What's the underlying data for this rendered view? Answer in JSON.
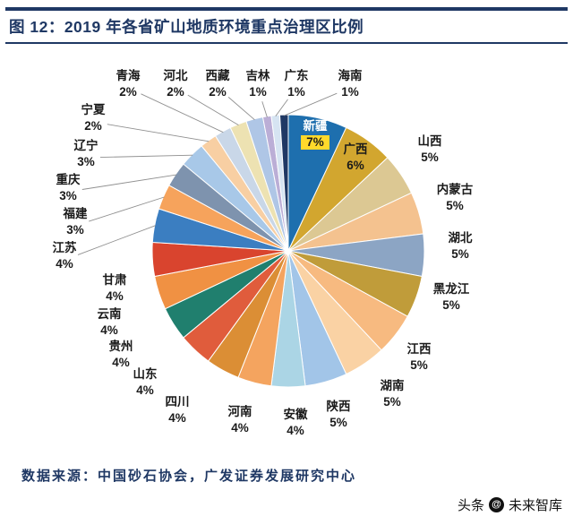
{
  "header": {
    "title": "图 12：2019 年各省矿山地质环境重点治理区比例"
  },
  "footer": {
    "source": "数据来源：中国砂石协会，广发证券发展研究中心"
  },
  "watermark": {
    "prefix": "头条",
    "logo_glyph": "@",
    "brand": "未来智库"
  },
  "colors": {
    "accent_navy": "#1F3864",
    "leader_line": "#909090",
    "label_text": "#1a1a1a",
    "inside_label_text": "#ffffff",
    "highlight_yellow": "#FFD92B"
  },
  "chart_data": {
    "type": "pie",
    "title": "2019 年各省矿山地质环境重点治理区比例",
    "unit": "%",
    "start_angle_deg": 0,
    "direction": "clockwise",
    "legend_position": "none",
    "label_style": "category name + percent, outside with leader lines (新疆 and 广西 inside)",
    "slices": [
      {
        "label": "新疆",
        "value": 7,
        "color": "#1E6FAE"
      },
      {
        "label": "广西",
        "value": 6,
        "color": "#D2A62F"
      },
      {
        "label": "山西",
        "value": 5,
        "color": "#DCC893"
      },
      {
        "label": "内蒙古",
        "value": 5,
        "color": "#F4C28F"
      },
      {
        "label": "湖北",
        "value": 5,
        "color": "#8CA5C4"
      },
      {
        "label": "黑龙江",
        "value": 5,
        "color": "#C09C3A"
      },
      {
        "label": "江西",
        "value": 5,
        "color": "#F7BA80"
      },
      {
        "label": "湖南",
        "value": 5,
        "color": "#FAD2A4"
      },
      {
        "label": "陕西",
        "value": 5,
        "color": "#A2C5E8"
      },
      {
        "label": "安徽",
        "value": 4,
        "color": "#ABD5E5"
      },
      {
        "label": "河南",
        "value": 4,
        "color": "#F4A45F"
      },
      {
        "label": "四川",
        "value": 4,
        "color": "#DB8E35"
      },
      {
        "label": "山东",
        "value": 4,
        "color": "#E05C3C"
      },
      {
        "label": "贵州",
        "value": 4,
        "color": "#207F6E"
      },
      {
        "label": "云南",
        "value": 4,
        "color": "#F09143"
      },
      {
        "label": "甘肃",
        "value": 4,
        "color": "#D9442E"
      },
      {
        "label": "江苏",
        "value": 4,
        "color": "#3B7EC1"
      },
      {
        "label": "福建",
        "value": 3,
        "color": "#F6A35C"
      },
      {
        "label": "重庆",
        "value": 3,
        "color": "#7E93AE"
      },
      {
        "label": "辽宁",
        "value": 3,
        "color": "#A8C8E8"
      },
      {
        "label": "宁夏",
        "value": 2,
        "color": "#F8CFA3"
      },
      {
        "label": "青海",
        "value": 2,
        "color": "#C9D7E8"
      },
      {
        "label": "河北",
        "value": 2,
        "color": "#EDE2B2"
      },
      {
        "label": "西藏",
        "value": 2,
        "color": "#AFC6E6"
      },
      {
        "label": "吉林",
        "value": 1,
        "color": "#BBAED6"
      },
      {
        "label": "广东",
        "value": 1,
        "color": "#D6E4F2"
      },
      {
        "label": "海南",
        "value": 1,
        "color": "#1F3864"
      }
    ]
  }
}
